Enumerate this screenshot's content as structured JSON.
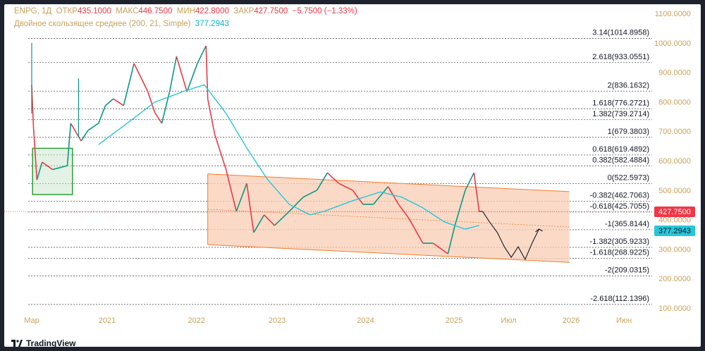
{
  "header": {
    "symbol": "ENPG, 1Д",
    "open_label": "ОТКР",
    "open": "435.1000",
    "high_label": "МАКС",
    "high": "446.7500",
    "low_label": "МИН",
    "low": "422.8000",
    "close_label": "ЗАКР",
    "close": "427.7500",
    "change": "−5.7500 (−1.33%)",
    "indicator": "Двойное скользящее среднее (200, 21, Simple)",
    "indicator_value": "377.2943"
  },
  "logo": "TradingView",
  "colors": {
    "up": "#089981",
    "down": "#f23645",
    "ma": "#26c6da",
    "channel": "#f57c2a",
    "fill": "#f8cdb4",
    "axis": "#c9a25a",
    "fib": "#131722"
  },
  "chart_data": {
    "type": "line",
    "y_ticks": [
      "1100.0000",
      "1000.0000",
      "900.0000",
      "800.0000",
      "700.0000",
      "600.0000",
      "500.0000",
      "400.0000",
      "300.0000",
      "200.0000",
      "100.0000"
    ],
    "y_tick_values": [
      1100,
      1000,
      900,
      800,
      700,
      600,
      500,
      400,
      300,
      200,
      100
    ],
    "ylim": [
      100,
      1100
    ],
    "x_ticks": [
      {
        "label": "Мар",
        "t": 2020.13
      },
      {
        "label": "2021",
        "t": 2021.0
      },
      {
        "label": "2022",
        "t": 2022.03
      },
      {
        "label": "2023",
        "t": 2022.96
      },
      {
        "label": "2024",
        "t": 2023.98
      },
      {
        "label": "2025",
        "t": 2025.0
      },
      {
        "label": "Июл",
        "t": 2025.63
      },
      {
        "label": "2026",
        "t": 2026.35
      },
      {
        "label": "Июн",
        "t": 2026.96
      }
    ],
    "xlim": [
      2019.8,
      2027.3
    ],
    "fib_levels": [
      {
        "label": "3.14(1014.8958)",
        "value": 1014.8958
      },
      {
        "label": "2.618(933.0551)",
        "value": 933.0551
      },
      {
        "label": "2(836.1632)",
        "value": 836.1632
      },
      {
        "label": "1.618(776.2721)",
        "value": 776.2721
      },
      {
        "label": "1.382(739.2714)",
        "value": 739.2714
      },
      {
        "label": "1(679.3803)",
        "value": 679.3803
      },
      {
        "label": "0.618(619.4892)",
        "value": 619.4892
      },
      {
        "label": "0.382(582.4884)",
        "value": 582.4884
      },
      {
        "label": "0(522.5973)",
        "value": 522.5973
      },
      {
        "label": "-0.382(462.7063)",
        "value": 462.7063
      },
      {
        "label": "-0.618(425.7055)",
        "value": 425.7055
      },
      {
        "label": "-1(365.8144)",
        "value": 365.8144
      },
      {
        "label": "-1.382(305.9233)",
        "value": 305.9233
      },
      {
        "label": "-1.618(268.9225)",
        "value": 268.9225
      },
      {
        "label": "-2(209.0315)",
        "value": 209.0315
      },
      {
        "label": "-2.618(112.1396)",
        "value": 112.1396
      }
    ],
    "price_label": "427.7500",
    "price_value": 427.75,
    "ma_label": "377.2943",
    "ma_value": 377.2943,
    "price": [
      [
        2020.13,
        858
      ],
      [
        2020.15,
        715
      ],
      [
        2020.19,
        535
      ],
      [
        2020.25,
        595
      ],
      [
        2020.37,
        570
      ],
      [
        2020.54,
        583
      ],
      [
        2020.58,
        727
      ],
      [
        2020.7,
        667
      ],
      [
        2020.78,
        703
      ],
      [
        2020.9,
        727
      ],
      [
        2020.98,
        787
      ],
      [
        2021.07,
        810
      ],
      [
        2021.19,
        787
      ],
      [
        2021.31,
        930
      ],
      [
        2021.39,
        882
      ],
      [
        2021.47,
        834
      ],
      [
        2021.55,
        763
      ],
      [
        2021.63,
        727
      ],
      [
        2021.72,
        834
      ],
      [
        2021.8,
        954
      ],
      [
        2021.92,
        834
      ],
      [
        2022.04,
        930
      ],
      [
        2022.14,
        990
      ],
      [
        2022.16,
        810
      ],
      [
        2022.24,
        690
      ],
      [
        2022.37,
        571
      ],
      [
        2022.49,
        428
      ],
      [
        2022.61,
        523
      ],
      [
        2022.69,
        356
      ],
      [
        2022.81,
        416
      ],
      [
        2022.93,
        380
      ],
      [
        2023.1,
        428
      ],
      [
        2023.26,
        476
      ],
      [
        2023.42,
        500
      ],
      [
        2023.54,
        559
      ],
      [
        2023.67,
        523
      ],
      [
        2023.83,
        500
      ],
      [
        2023.95,
        452
      ],
      [
        2024.07,
        452
      ],
      [
        2024.24,
        512
      ],
      [
        2024.36,
        452
      ],
      [
        2024.48,
        404
      ],
      [
        2024.64,
        320
      ],
      [
        2024.76,
        320
      ],
      [
        2024.93,
        284
      ],
      [
        2025.01,
        380
      ],
      [
        2025.13,
        500
      ],
      [
        2025.23,
        559
      ],
      [
        2025.29,
        427.75
      ]
    ],
    "projection": [
      [
        2025.29,
        427.75
      ],
      [
        2025.33,
        428
      ],
      [
        2025.41,
        392
      ],
      [
        2025.5,
        356
      ],
      [
        2025.58,
        308
      ],
      [
        2025.66,
        272
      ],
      [
        2025.74,
        308
      ],
      [
        2025.82,
        265
      ],
      [
        2025.9,
        320
      ],
      [
        2025.98,
        368
      ]
    ],
    "ma": [
      [
        2020.9,
        655
      ],
      [
        2021.23,
        727
      ],
      [
        2021.55,
        799
      ],
      [
        2021.88,
        835
      ],
      [
        2022.12,
        858
      ],
      [
        2022.37,
        761
      ],
      [
        2022.61,
        643
      ],
      [
        2022.85,
        536
      ],
      [
        2023.1,
        452
      ],
      [
        2023.34,
        416
      ],
      [
        2023.5,
        428
      ],
      [
        2023.83,
        464
      ],
      [
        2024.15,
        494
      ],
      [
        2024.4,
        476
      ],
      [
        2024.64,
        440
      ],
      [
        2024.89,
        392
      ],
      [
        2025.13,
        368
      ],
      [
        2025.29,
        380
      ]
    ],
    "channel": {
      "t0": 2022.16,
      "t1": 2026.33,
      "top": [
        555,
        495
      ],
      "bottom": [
        315,
        255
      ]
    },
    "box": {
      "t0": 2020.14,
      "t1": 2020.6,
      "top": 642,
      "bottom": 485
    }
  }
}
